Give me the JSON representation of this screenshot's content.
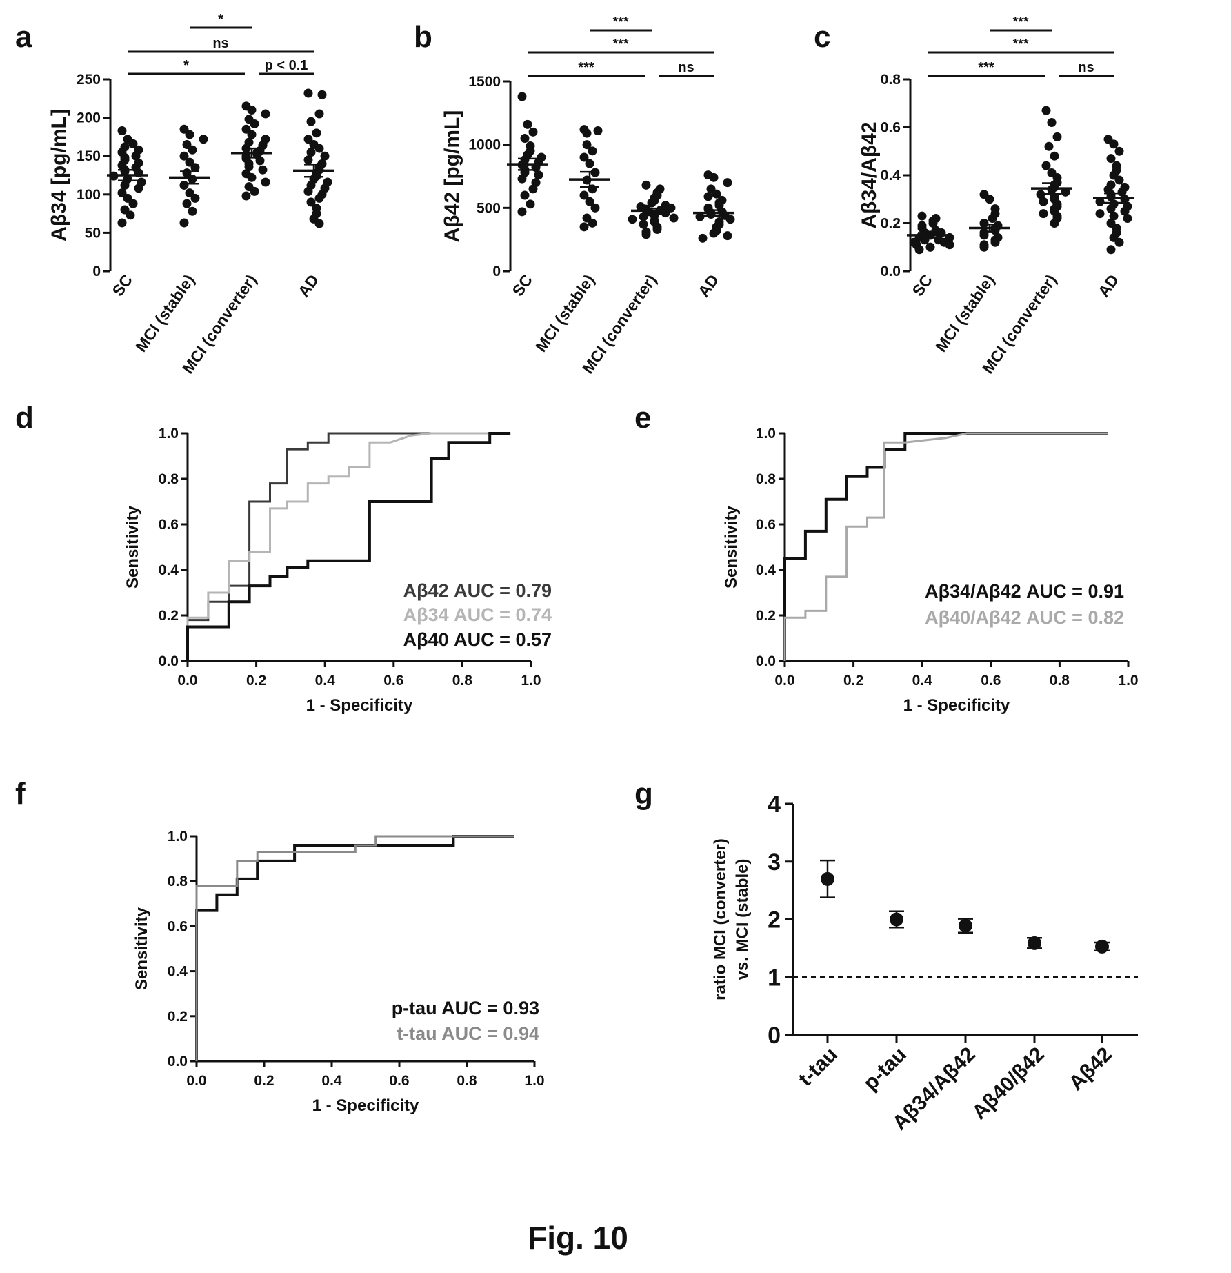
{
  "figure": {
    "caption": "Fig. 10"
  },
  "chart_data": [
    {
      "panel": "a",
      "type": "scatter",
      "ylabel": "Aβ34 [pg/mL]",
      "ylim": [
        0,
        250
      ],
      "yticks": [
        0,
        50,
        100,
        150,
        200,
        250
      ],
      "categories": [
        "SC",
        "MCI (stable)",
        "MCI (converter)",
        "AD"
      ],
      "groups": [
        {
          "mean": 125,
          "sem": 7,
          "values": [
            183,
            172,
            166,
            162,
            158,
            155,
            150,
            148,
            145,
            141,
            138,
            135,
            132,
            130,
            128,
            124,
            120,
            116,
            112,
            108,
            102,
            95,
            88,
            80,
            73,
            63
          ]
        },
        {
          "mean": 122,
          "sem": 8,
          "values": [
            185,
            178,
            172,
            165,
            158,
            150,
            142,
            135,
            128,
            120,
            112,
            102,
            95,
            88,
            78,
            63
          ]
        },
        {
          "mean": 154,
          "sem": 6,
          "values": [
            215,
            210,
            205,
            198,
            192,
            185,
            178,
            172,
            168,
            164,
            160,
            157,
            155,
            152,
            150,
            147,
            144,
            140,
            136,
            132,
            127,
            122,
            116,
            110,
            104,
            98
          ]
        },
        {
          "mean": 131,
          "sem": 8,
          "values": [
            232,
            230,
            205,
            195,
            180,
            172,
            165,
            160,
            155,
            150,
            145,
            140,
            136,
            132,
            128,
            124,
            120,
            116,
            112,
            108,
            104,
            100,
            95,
            90,
            82,
            75,
            68,
            62
          ]
        }
      ],
      "significance": [
        {
          "from": 1,
          "to": 2,
          "label": "*",
          "level": 0
        },
        {
          "from": 0,
          "to": 3,
          "label": "ns",
          "level": 1
        },
        {
          "from": 0,
          "to": 2,
          "label": "*",
          "level": 2
        },
        {
          "from": 2,
          "to": 3,
          "label": "p < 0.1",
          "level": 2
        }
      ]
    },
    {
      "panel": "b",
      "type": "scatter",
      "ylabel": "Aβ42 [pg/mL]",
      "ylim": [
        0,
        1500
      ],
      "yticks": [
        0,
        500,
        1000,
        1500
      ],
      "categories": [
        "SC",
        "MCI (stable)",
        "MCI (converter)",
        "AD"
      ],
      "groups": [
        {
          "mean": 845,
          "sem": 45,
          "values": [
            1380,
            1160,
            1100,
            1050,
            990,
            950,
            920,
            900,
            880,
            860,
            840,
            820,
            800,
            780,
            760,
            730,
            700,
            650,
            600,
            530,
            470
          ]
        },
        {
          "mean": 725,
          "sem": 60,
          "values": [
            1120,
            1110,
            1090,
            1000,
            950,
            900,
            850,
            780,
            720,
            650,
            600,
            550,
            500,
            420,
            380,
            350
          ]
        },
        {
          "mean": 478,
          "sem": 18,
          "values": [
            680,
            650,
            620,
            600,
            580,
            560,
            540,
            520,
            510,
            500,
            490,
            480,
            470,
            460,
            450,
            440,
            430,
            420,
            410,
            400,
            390,
            370,
            350,
            330,
            310,
            290
          ]
        },
        {
          "mean": 460,
          "sem": 22,
          "values": [
            760,
            740,
            700,
            650,
            610,
            590,
            560,
            540,
            520,
            500,
            490,
            470,
            460,
            450,
            440,
            430,
            410,
            390,
            370,
            350,
            320,
            300,
            280,
            260
          ]
        }
      ],
      "significance": [
        {
          "from": 1,
          "to": 2,
          "label": "***",
          "level": 0
        },
        {
          "from": 0,
          "to": 3,
          "label": "***",
          "level": 1
        },
        {
          "from": 0,
          "to": 2,
          "label": "***",
          "level": 2
        },
        {
          "from": 2,
          "to": 3,
          "label": "ns",
          "level": 2
        }
      ]
    },
    {
      "panel": "c",
      "type": "scatter",
      "ylabel": "Aβ34/Aβ42",
      "ylim": [
        0,
        0.8
      ],
      "yticks": [
        0.0,
        0.2,
        0.4,
        0.6,
        0.8
      ],
      "categories": [
        "SC",
        "MCI (stable)",
        "MCI (converter)",
        "AD"
      ],
      "groups": [
        {
          "mean": 0.15,
          "sem": 0.01,
          "values": [
            0.23,
            0.22,
            0.21,
            0.2,
            0.19,
            0.18,
            0.17,
            0.16,
            0.16,
            0.15,
            0.15,
            0.14,
            0.14,
            0.13,
            0.13,
            0.12,
            0.12,
            0.11,
            0.11,
            0.1,
            0.1,
            0.09
          ]
        },
        {
          "mean": 0.18,
          "sem": 0.015,
          "values": [
            0.32,
            0.3,
            0.26,
            0.24,
            0.22,
            0.2,
            0.19,
            0.18,
            0.17,
            0.16,
            0.15,
            0.14,
            0.13,
            0.12,
            0.11,
            0.1
          ]
        },
        {
          "mean": 0.345,
          "sem": 0.022,
          "values": [
            0.67,
            0.62,
            0.56,
            0.52,
            0.48,
            0.44,
            0.41,
            0.39,
            0.37,
            0.36,
            0.35,
            0.34,
            0.33,
            0.32,
            0.31,
            0.3,
            0.29,
            0.28,
            0.27,
            0.26,
            0.25,
            0.24,
            0.23,
            0.22,
            0.2
          ]
        },
        {
          "mean": 0.305,
          "sem": 0.02,
          "values": [
            0.55,
            0.53,
            0.5,
            0.47,
            0.44,
            0.42,
            0.4,
            0.38,
            0.36,
            0.35,
            0.34,
            0.33,
            0.32,
            0.31,
            0.3,
            0.29,
            0.28,
            0.27,
            0.26,
            0.25,
            0.24,
            0.23,
            0.22,
            0.2,
            0.18,
            0.16,
            0.14,
            0.12,
            0.09
          ]
        }
      ],
      "significance": [
        {
          "from": 1,
          "to": 2,
          "label": "***",
          "level": 0
        },
        {
          "from": 0,
          "to": 3,
          "label": "***",
          "level": 1
        },
        {
          "from": 0,
          "to": 2,
          "label": "***",
          "level": 2
        },
        {
          "from": 2,
          "to": 3,
          "label": "ns",
          "level": 2
        }
      ]
    },
    {
      "panel": "d",
      "type": "line",
      "xlabel": "1 - Specificity",
      "ylabel": "Sensitivity",
      "xlim": [
        0,
        1
      ],
      "ylim": [
        0,
        1
      ],
      "ticks": [
        0.0,
        0.2,
        0.4,
        0.6,
        0.8,
        1.0
      ],
      "series": [
        {
          "name": "Aβ42 AUC = 0.79",
          "color": "#3a3a3a",
          "x": [
            0,
            0,
            0.06,
            0.06,
            0.12,
            0.12,
            0.18,
            0.18,
            0.24,
            0.24,
            0.29,
            0.29,
            0.35,
            0.35,
            0.41,
            0.41,
            0.47,
            0.47,
            0.53,
            0.53,
            0.59,
            0.65,
            0.71,
            0.76,
            0.82,
            0.88,
            0.94
          ],
          "y": [
            0,
            0.18,
            0.18,
            0.26,
            0.26,
            0.33,
            0.33,
            0.7,
            0.7,
            0.78,
            0.78,
            0.93,
            0.93,
            0.96,
            0.96,
            1,
            1,
            1,
            1,
            1,
            1,
            1,
            1,
            1,
            1,
            1,
            1
          ]
        },
        {
          "name": "Aβ34 AUC = 0.74",
          "color": "#b5b5b5",
          "x": [
            0,
            0,
            0.06,
            0.06,
            0.12,
            0.12,
            0.18,
            0.18,
            0.24,
            0.24,
            0.29,
            0.29,
            0.35,
            0.35,
            0.41,
            0.41,
            0.47,
            0.47,
            0.53,
            0.53,
            0.59,
            0.65,
            0.71,
            0.76,
            0.82,
            0.88,
            0.94
          ],
          "y": [
            0,
            0.19,
            0.19,
            0.3,
            0.3,
            0.44,
            0.44,
            0.48,
            0.48,
            0.67,
            0.67,
            0.7,
            0.7,
            0.78,
            0.78,
            0.81,
            0.81,
            0.85,
            0.85,
            0.96,
            0.96,
            0.99,
            1,
            1,
            1,
            1,
            1
          ]
        },
        {
          "name": "Aβ40 AUC = 0.57",
          "color": "#111111",
          "x": [
            0,
            0,
            0.12,
            0.12,
            0.18,
            0.18,
            0.24,
            0.24,
            0.29,
            0.29,
            0.35,
            0.35,
            0.41,
            0.41,
            0.53,
            0.53,
            0.71,
            0.71,
            0.76,
            0.76,
            0.88,
            0.88,
            0.94
          ],
          "y": [
            0,
            0.15,
            0.15,
            0.26,
            0.26,
            0.33,
            0.33,
            0.37,
            0.37,
            0.41,
            0.41,
            0.44,
            0.44,
            0.44,
            0.44,
            0.7,
            0.7,
            0.89,
            0.89,
            0.96,
            0.96,
            1,
            1
          ]
        }
      ]
    },
    {
      "panel": "e",
      "type": "line",
      "xlabel": "1 - Specificity",
      "ylabel": "Sensitivity",
      "xlim": [
        0,
        1
      ],
      "ylim": [
        0,
        1
      ],
      "ticks": [
        0.0,
        0.2,
        0.4,
        0.6,
        0.8,
        1.0
      ],
      "series": [
        {
          "name": "Aβ34/Aβ42 AUC = 0.91",
          "color": "#111111",
          "x": [
            0,
            0,
            0.06,
            0.06,
            0.12,
            0.12,
            0.18,
            0.18,
            0.24,
            0.24,
            0.29,
            0.29,
            0.35,
            0.35,
            0.41,
            0.47,
            0.53,
            0.59,
            0.65,
            0.71,
            0.76,
            0.82,
            0.88,
            0.94
          ],
          "y": [
            0,
            0.45,
            0.45,
            0.57,
            0.57,
            0.71,
            0.71,
            0.81,
            0.81,
            0.85,
            0.85,
            0.93,
            0.93,
            1,
            1,
            1,
            1,
            1,
            1,
            1,
            1,
            1,
            1,
            1
          ]
        },
        {
          "name": "Aβ40/Aβ42 AUC = 0.82",
          "color": "#a9a9a9",
          "x": [
            0,
            0,
            0.06,
            0.06,
            0.12,
            0.12,
            0.18,
            0.18,
            0.24,
            0.24,
            0.29,
            0.29,
            0.35,
            0.41,
            0.47,
            0.53,
            0.59,
            0.65,
            0.71,
            0.76,
            0.82,
            0.88,
            0.94
          ],
          "y": [
            0,
            0.19,
            0.19,
            0.22,
            0.22,
            0.37,
            0.37,
            0.59,
            0.59,
            0.63,
            0.63,
            0.96,
            0.96,
            0.97,
            0.98,
            1,
            1,
            1,
            1,
            1,
            1,
            1,
            1
          ]
        }
      ]
    },
    {
      "panel": "f",
      "type": "line",
      "xlabel": "1 - Specificity",
      "ylabel": "Sensitivity",
      "xlim": [
        0,
        1
      ],
      "ylim": [
        0,
        1
      ],
      "ticks": [
        0.0,
        0.2,
        0.4,
        0.6,
        0.8,
        1.0
      ],
      "series": [
        {
          "name": "p-tau AUC = 0.93",
          "color": "#111111",
          "x": [
            0,
            0,
            0.06,
            0.06,
            0.12,
            0.12,
            0.18,
            0.18,
            0.29,
            0.29,
            0.76,
            0.76,
            0.82,
            0.88,
            0.94
          ],
          "y": [
            0,
            0.67,
            0.67,
            0.74,
            0.74,
            0.81,
            0.81,
            0.89,
            0.89,
            0.96,
            0.96,
            1,
            1,
            1,
            1
          ]
        },
        {
          "name": "t-tau AUC = 0.94",
          "color": "#8a8a8a",
          "x": [
            0,
            0,
            0.12,
            0.12,
            0.18,
            0.18,
            0.47,
            0.47,
            0.53,
            0.53,
            0.59,
            0.65,
            0.71,
            0.76,
            0.82,
            0.88,
            0.94
          ],
          "y": [
            0,
            0.78,
            0.78,
            0.89,
            0.89,
            0.93,
            0.93,
            0.96,
            0.96,
            1,
            1,
            1,
            1,
            1,
            1,
            1,
            1
          ]
        }
      ]
    },
    {
      "panel": "g",
      "type": "scatter",
      "ylabel_line1": "ratio MCI (converter)",
      "ylabel_line2": "vs. MCI (stable)",
      "ylim": [
        0,
        4
      ],
      "yticks": [
        0,
        1,
        2,
        3,
        4
      ],
      "reference_line": 1,
      "categories": [
        "t-tau",
        "p-tau",
        "Aβ34/Aβ42",
        "Aβ40/β42",
        "Aβ42"
      ],
      "values": [
        2.7,
        2.0,
        1.89,
        1.59,
        1.53
      ],
      "errors": [
        0.32,
        0.14,
        0.12,
        0.09,
        0.07
      ]
    }
  ]
}
